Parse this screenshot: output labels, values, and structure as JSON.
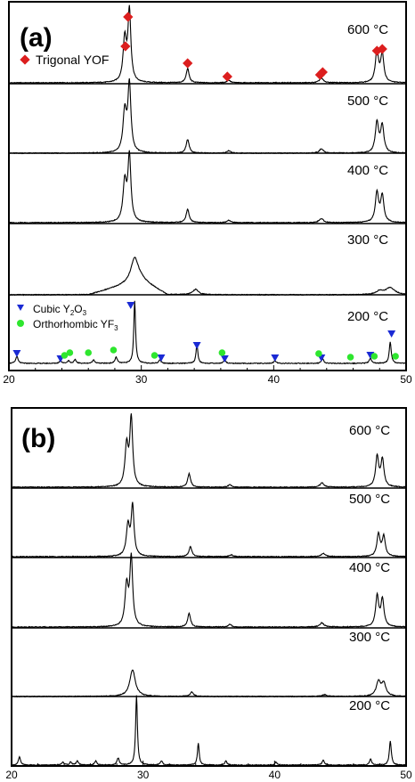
{
  "chart_data": [
    {
      "type": "line",
      "panel_label": "(a)",
      "xlabel": "",
      "ylabel": "",
      "xlim": [
        20,
        50
      ],
      "x_ticks": [
        20,
        30,
        40,
        50
      ],
      "x_tick_labels": [
        "20",
        "30",
        "40",
        "50"
      ],
      "legend": [
        {
          "label": "Trigonal YOF",
          "marker": "diamond",
          "color": "#dc1e1e"
        }
      ],
      "legend_bottom": [
        {
          "label_main": "Cubic Y",
          "sub1": "2",
          "mid": "O",
          "sub2": "3",
          "marker": "triangle-down",
          "color": "#1a2ad4"
        },
        {
          "label_main": "Orthorhombic YF",
          "sub1": "3",
          "mid": "",
          "sub2": "",
          "marker": "circle",
          "color": "#2ee62e"
        }
      ],
      "series": [
        {
          "name": "600 °C"
        },
        {
          "name": "500 °C"
        },
        {
          "name": "400 °C"
        },
        {
          "name": "300 °C"
        },
        {
          "name": "200 °C"
        }
      ],
      "markers": {
        "trigonal_yof": [
          28.8,
          29.0,
          33.5,
          36.5,
          43.5,
          43.7,
          47.8,
          48.2
        ],
        "cubic_y2o3": [
          20.6,
          23.9,
          29.2,
          31.5,
          34.2,
          36.3,
          40.1,
          43.6,
          47.3,
          48.9
        ],
        "orthorhombic_yf3": [
          24.2,
          24.6,
          26.0,
          27.9,
          31.0,
          36.1,
          43.4,
          45.8,
          47.6,
          49.2
        ]
      }
    },
    {
      "type": "line",
      "panel_label": "(b)",
      "xlabel": "",
      "ylabel": "",
      "xlim": [
        20,
        50
      ],
      "x_ticks": [
        20,
        30,
        40,
        50
      ],
      "x_tick_labels": [
        "20",
        "30",
        "40",
        "50"
      ],
      "series": [
        {
          "name": "600 °C"
        },
        {
          "name": "500 °C"
        },
        {
          "name": "400 °C"
        },
        {
          "name": "300 °C"
        },
        {
          "name": "200 °C"
        }
      ]
    }
  ]
}
